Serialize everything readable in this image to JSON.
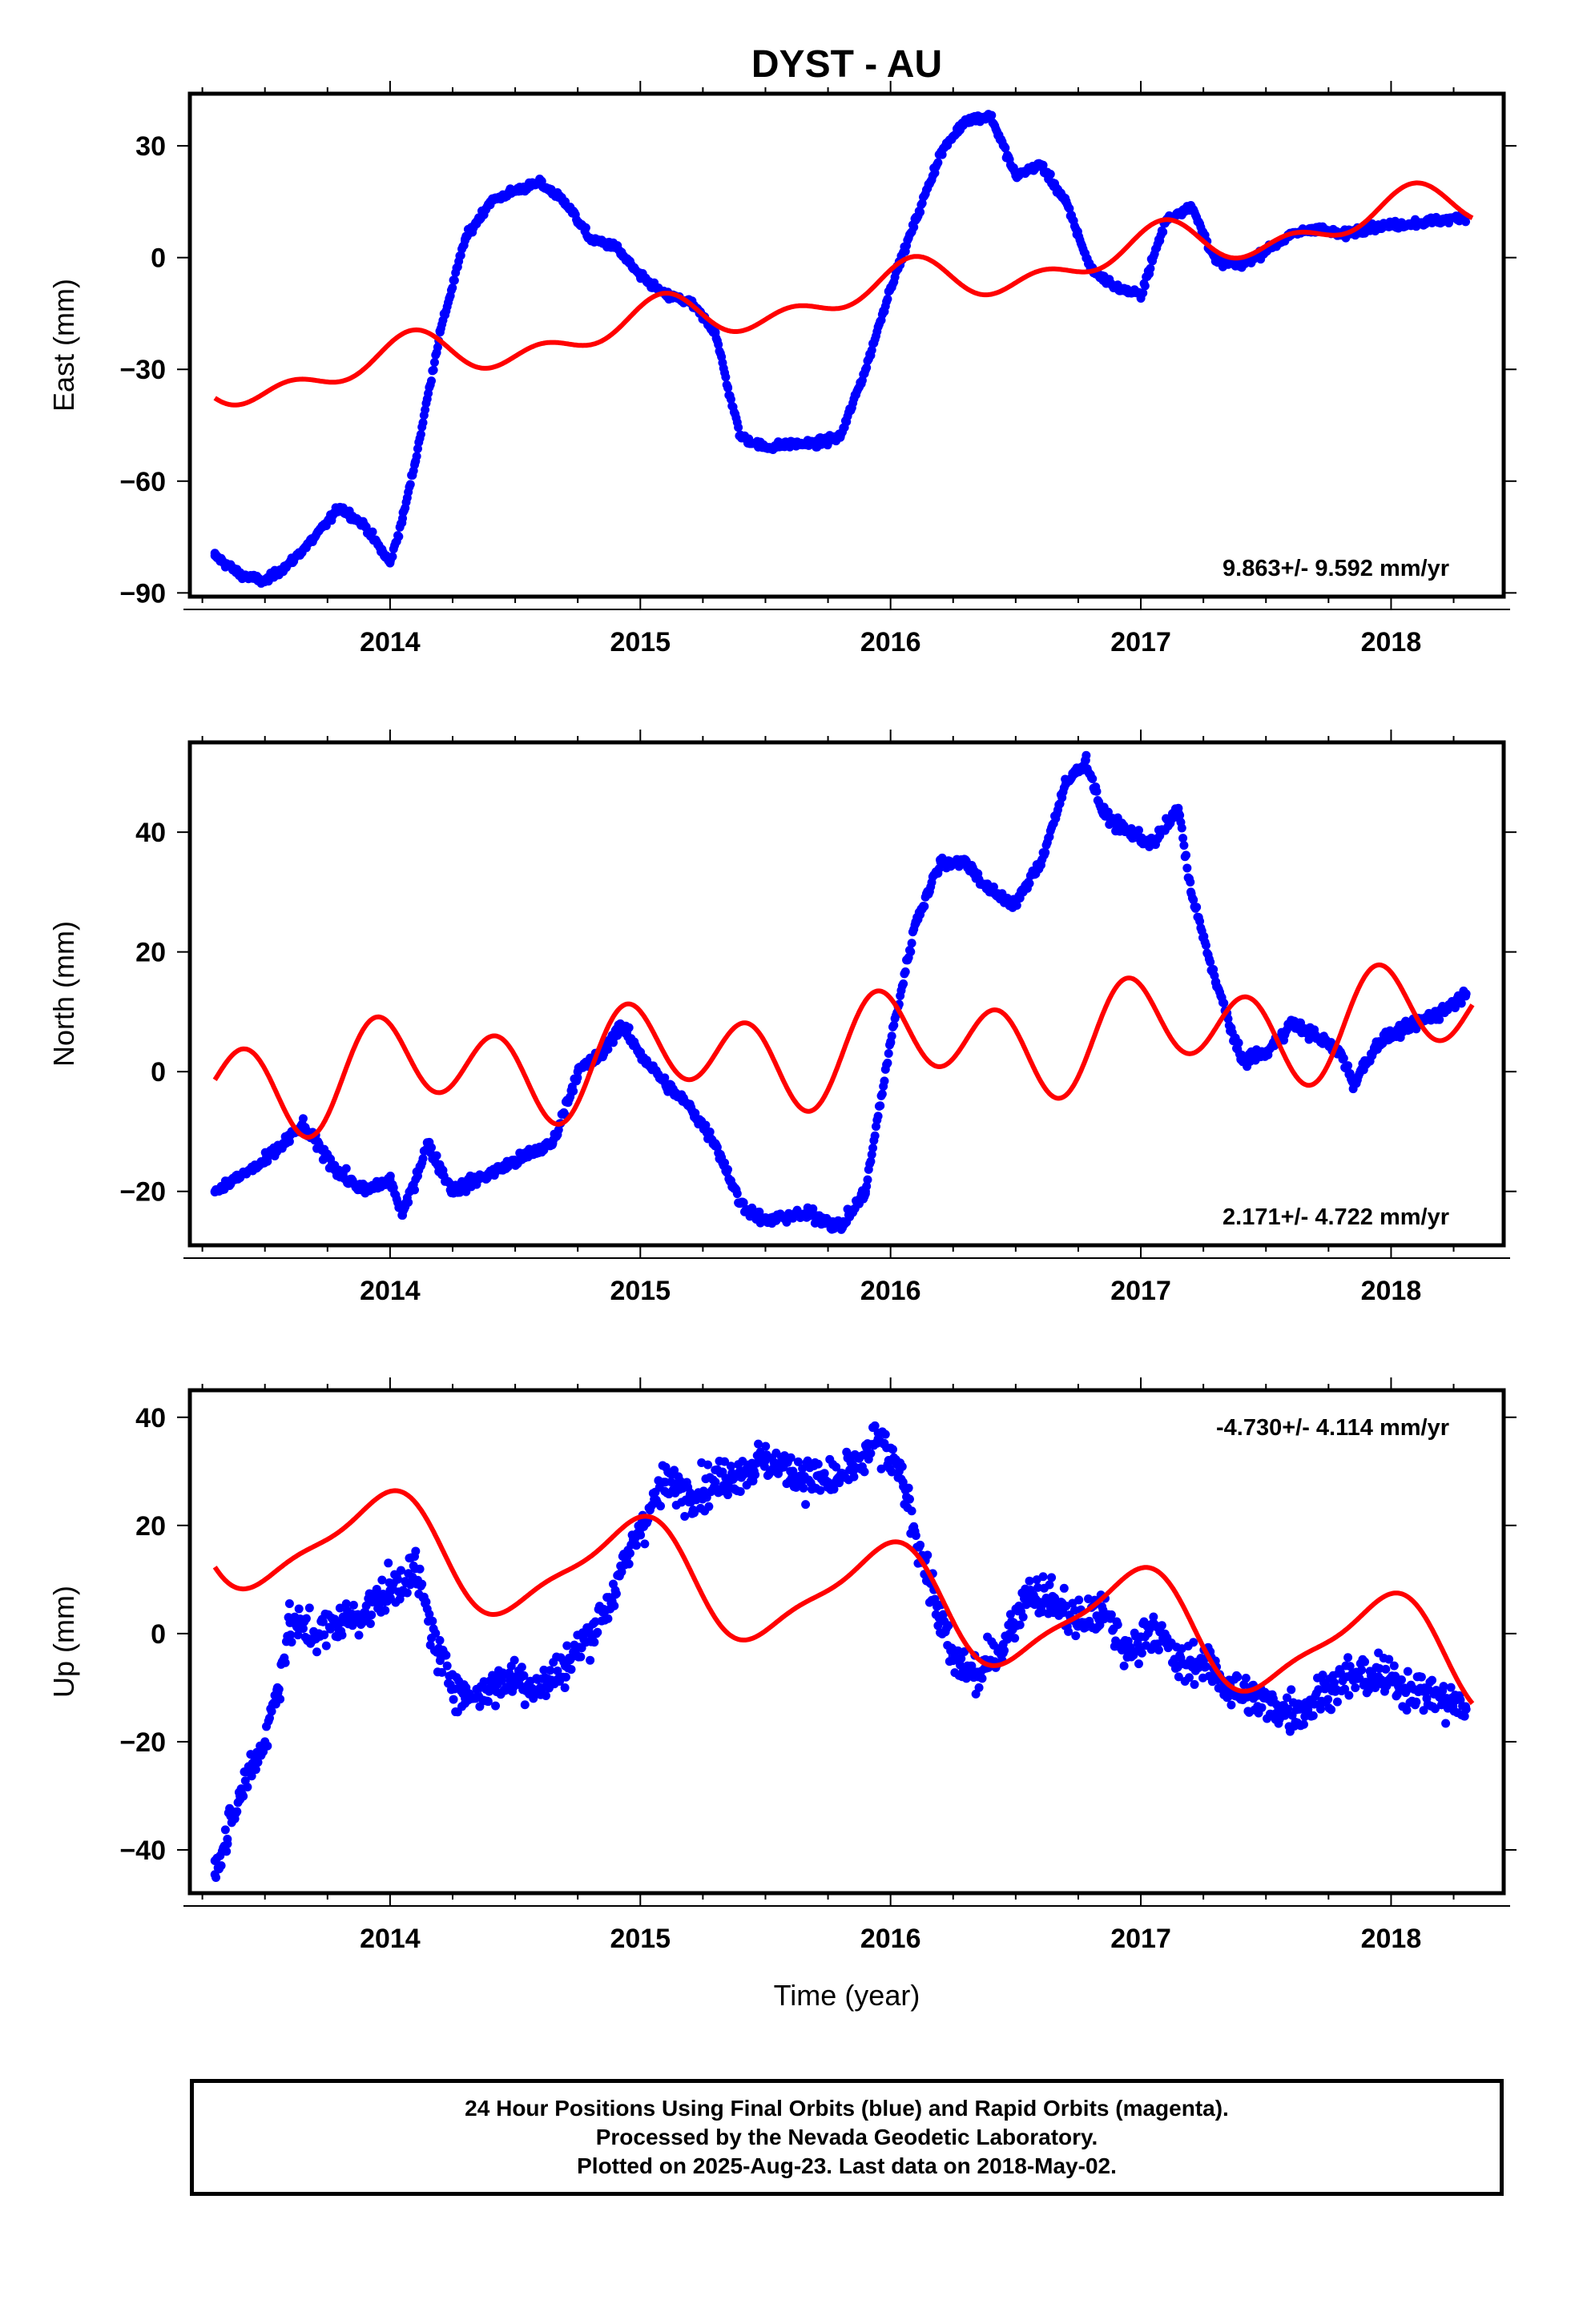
{
  "title": "DYST - AU",
  "chart_data": [
    {
      "type": "scatter",
      "ylabel": "East (mm)",
      "xlabel": "",
      "rate_text": "9.863+/- 9.592 mm/yr",
      "xlim": [
        2013.2,
        2018.45
      ],
      "ylim": [
        -91,
        44
      ],
      "yticks": [
        -90,
        -60,
        -30,
        0,
        30
      ],
      "xticks": [
        2014,
        2015,
        2016,
        2017,
        2018
      ],
      "x_tick_labels": [
        "2014",
        "2015",
        "2016",
        "2017",
        "2018"
      ],
      "dot_color": "#0000ff",
      "curve_color": "#ff0000",
      "observations": {
        "x": [
          2013.3,
          2013.4,
          2013.5,
          2013.6,
          2013.7,
          2013.8,
          2013.9,
          2014.0,
          2014.05,
          2014.1,
          2014.2,
          2014.3,
          2014.4,
          2014.5,
          2014.6,
          2014.7,
          2014.8,
          2014.9,
          2015.0,
          2015.1,
          2015.2,
          2015.3,
          2015.35,
          2015.4,
          2015.5,
          2015.6,
          2015.7,
          2015.8,
          2015.9,
          2016.0,
          2016.1,
          2016.2,
          2016.3,
          2016.4,
          2016.5,
          2016.6,
          2016.7,
          2016.8,
          2016.9,
          2017.0,
          2017.1,
          2017.2,
          2017.3,
          2017.4,
          2017.5,
          2017.6,
          2017.7,
          2017.8,
          2017.9,
          2018.2,
          2018.3
        ],
        "y": [
          -80,
          -85,
          -87,
          -82,
          -75,
          -67,
          -72,
          -82,
          -70,
          -55,
          -20,
          5,
          15,
          18,
          20,
          15,
          5,
          3,
          -5,
          -10,
          -12,
          -20,
          -35,
          -48,
          -51,
          -50,
          -50,
          -48,
          -30,
          -8,
          10,
          28,
          37,
          38,
          22,
          25,
          15,
          -3,
          -8,
          -10,
          10,
          14,
          -1,
          -2,
          2,
          6,
          8,
          6,
          8,
          10,
          11
        ]
      },
      "model": {
        "rate": 9.863,
        "ref_epoch": 2015.85,
        "offset": -10,
        "annual_amp": 4.5,
        "annual_phase": 1.2,
        "semiannual_amp": 3.5,
        "semiannual_phase": 0.3
      }
    },
    {
      "type": "scatter",
      "ylabel": "North (mm)",
      "xlabel": "",
      "rate_text": "2.171+/- 4.722 mm/yr",
      "xlim": [
        2013.2,
        2018.45
      ],
      "ylim": [
        -29,
        55
      ],
      "yticks": [
        -20,
        0,
        20,
        40
      ],
      "xticks": [
        2014,
        2015,
        2016,
        2017,
        2018
      ],
      "x_tick_labels": [
        "2014",
        "2015",
        "2016",
        "2017",
        "2018"
      ],
      "dot_color": "#0000ff",
      "curve_color": "#ff0000",
      "observations": {
        "x": [
          2013.3,
          2013.5,
          2013.65,
          2013.8,
          2013.9,
          2014.0,
          2014.05,
          2014.15,
          2014.25,
          2014.35,
          2014.5,
          2014.65,
          2014.75,
          2014.85,
          2014.92,
          2015.0,
          2015.1,
          2015.2,
          2015.3,
          2015.4,
          2015.5,
          2015.6,
          2015.7,
          2015.8,
          2015.9,
          2016.0,
          2016.1,
          2016.2,
          2016.3,
          2016.4,
          2016.5,
          2016.6,
          2016.7,
          2016.78,
          2016.85,
          2016.95,
          2017.05,
          2017.15,
          2017.2,
          2017.3,
          2017.4,
          2017.5,
          2017.6,
          2017.7,
          2017.8,
          2017.85,
          2017.95,
          2018.2,
          2018.3
        ],
        "y": [
          -20,
          -15,
          -9,
          -17,
          -20,
          -18,
          -24,
          -12,
          -20,
          -18,
          -15,
          -12,
          0,
          3,
          8,
          3,
          -2,
          -6,
          -12,
          -22,
          -25,
          -24,
          -24,
          -26,
          -20,
          5,
          25,
          35,
          35,
          30,
          28,
          35,
          48,
          52,
          43,
          40,
          38,
          44,
          30,
          15,
          2,
          3,
          8,
          6,
          3,
          -2,
          5,
          10,
          13
        ]
      },
      "model": {
        "rate": 2.171,
        "ref_epoch": 2015.85,
        "offset": 4,
        "annual_amp": 3.8,
        "annual_phase": 1.0,
        "semiannual_amp": 7.0,
        "semiannual_phase": 2.4
      }
    },
    {
      "type": "scatter",
      "ylabel": "Up (mm)",
      "xlabel": "Time (year)",
      "rate_text": "-4.730+/- 4.114 mm/yr",
      "xlim": [
        2013.2,
        2018.45
      ],
      "ylim": [
        -48,
        45
      ],
      "yticks": [
        -40,
        -20,
        0,
        20,
        40
      ],
      "xticks": [
        2014,
        2015,
        2016,
        2017,
        2018
      ],
      "x_tick_labels": [
        "2014",
        "2015",
        "2016",
        "2017",
        "2018"
      ],
      "dot_color": "#0000ff",
      "curve_color": "#ff0000",
      "observations": {
        "x": [
          2013.3,
          2013.35,
          2013.4,
          2013.45,
          2013.5,
          2013.55,
          2013.6,
          2013.7,
          2013.8,
          2013.9,
          2014.0,
          2014.1,
          2014.2,
          2014.3,
          2014.4,
          2014.5,
          2014.6,
          2014.7,
          2014.8,
          2014.9,
          2015.0,
          2015.1,
          2015.2,
          2015.3,
          2015.4,
          2015.5,
          2015.6,
          2015.75,
          2015.85,
          2015.95,
          2016.05,
          2016.15,
          2016.25,
          2016.35,
          2016.45,
          2016.55,
          2016.65,
          2016.75,
          2016.85,
          2016.95,
          2017.05,
          2017.15,
          2017.25,
          2017.35,
          2017.45,
          2017.55,
          2017.65,
          2017.75,
          2017.85,
          2017.95,
          2018.2,
          2018.3
        ],
        "y": [
          -42,
          -38,
          -30,
          -24,
          -20,
          -10,
          2,
          0,
          2,
          4,
          8,
          12,
          -5,
          -12,
          -10,
          -8,
          -10,
          -6,
          0,
          8,
          20,
          28,
          26,
          28,
          30,
          32,
          30,
          28,
          30,
          36,
          28,
          10,
          -5,
          -8,
          -2,
          8,
          6,
          2,
          4,
          -4,
          2,
          -6,
          -5,
          -10,
          -12,
          -14,
          -14,
          -10,
          -8,
          -8,
          -12,
          -14
        ]
      },
      "model": {
        "rate": -4.73,
        "ref_epoch": 2015.85,
        "offset": 7,
        "annual_amp": 9.5,
        "annual_phase": 1.75,
        "semiannual_amp": 2.5,
        "semiannual_phase": 0.5
      }
    }
  ],
  "caption": {
    "line1": "24 Hour Positions Using Final Orbits (blue) and Rapid Orbits (magenta).",
    "line2": "Processed by the Nevada Geodetic Laboratory.",
    "line3": "Plotted on 2025-Aug-23. Last data on 2018-May-02."
  }
}
